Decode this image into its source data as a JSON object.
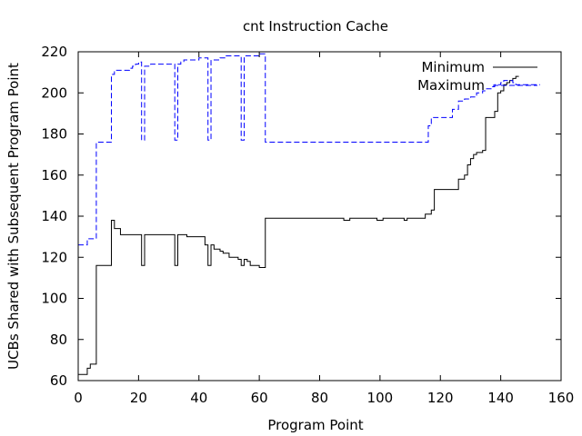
{
  "chart_data": {
    "type": "line",
    "title": "cnt Instruction Cache",
    "xlabel": "Program Point",
    "ylabel": "UCBs Shared with Subsequent Program Point",
    "xlim": [
      0,
      160
    ],
    "ylim": [
      60,
      220
    ],
    "xticks": [
      0,
      20,
      40,
      60,
      80,
      100,
      120,
      140,
      160
    ],
    "yticks": [
      60,
      80,
      100,
      120,
      140,
      160,
      180,
      200,
      220
    ],
    "grid": false,
    "legend_position": "top-right",
    "series": [
      {
        "name": "Minimum",
        "color": "#000000",
        "style": "solid",
        "x": [
          0,
          1,
          2,
          3,
          4,
          5,
          6,
          7,
          8,
          9,
          10,
          11,
          12,
          13,
          14,
          15,
          16,
          17,
          18,
          19,
          20,
          21,
          22,
          23,
          24,
          25,
          26,
          27,
          28,
          29,
          30,
          31,
          32,
          33,
          34,
          35,
          36,
          37,
          38,
          39,
          40,
          41,
          42,
          43,
          44,
          45,
          46,
          47,
          48,
          49,
          50,
          51,
          52,
          53,
          54,
          55,
          56,
          57,
          58,
          59,
          60,
          61,
          62,
          63,
          64,
          65,
          66,
          67,
          68,
          69,
          70,
          71,
          72,
          73,
          74,
          75,
          76,
          77,
          78,
          79,
          80,
          81,
          82,
          83,
          84,
          85,
          86,
          87,
          88,
          89,
          90,
          91,
          92,
          93,
          94,
          95,
          96,
          97,
          98,
          99,
          100,
          101,
          102,
          103,
          104,
          105,
          106,
          107,
          108,
          109,
          110,
          111,
          112,
          113,
          114,
          115,
          116,
          117,
          118,
          119,
          120,
          121,
          122,
          123,
          124,
          125,
          126,
          127,
          128,
          129,
          130,
          131,
          132,
          133,
          134,
          135,
          136,
          137,
          138,
          139,
          140,
          141,
          142,
          143,
          144,
          145,
          146
        ],
        "y": [
          63,
          63,
          63,
          66,
          68,
          68,
          116,
          116,
          116,
          116,
          116,
          138,
          134,
          134,
          131,
          131,
          131,
          131,
          131,
          131,
          131,
          116,
          131,
          131,
          131,
          131,
          131,
          131,
          131,
          131,
          131,
          131,
          116,
          131,
          131,
          131,
          130,
          130,
          130,
          130,
          130,
          130,
          126,
          116,
          126,
          124,
          124,
          123,
          122,
          122,
          120,
          120,
          120,
          119,
          116,
          119,
          118,
          116,
          116,
          116,
          115,
          115,
          139,
          139,
          139,
          139,
          139,
          139,
          139,
          139,
          139,
          139,
          139,
          139,
          139,
          139,
          139,
          139,
          139,
          139,
          139,
          139,
          139,
          139,
          139,
          139,
          139,
          139,
          138,
          138,
          139,
          139,
          139,
          139,
          139,
          139,
          139,
          139,
          139,
          138,
          138,
          139,
          139,
          139,
          139,
          139,
          139,
          139,
          138,
          139,
          139,
          139,
          139,
          139,
          139,
          141,
          141,
          143,
          153,
          153,
          153,
          153,
          153,
          153,
          153,
          153,
          158,
          158,
          160,
          165,
          168,
          170,
          171,
          171,
          172,
          188,
          188,
          188,
          191,
          200,
          201,
          204,
          205,
          206,
          207,
          208,
          208
        ]
      },
      {
        "name": "Maximum",
        "color": "#0000ff",
        "style": "dashed",
        "x": [
          0,
          1,
          2,
          3,
          4,
          5,
          6,
          7,
          8,
          9,
          10,
          11,
          12,
          13,
          14,
          15,
          16,
          17,
          18,
          19,
          20,
          21,
          22,
          23,
          24,
          25,
          26,
          27,
          28,
          29,
          30,
          31,
          32,
          33,
          34,
          35,
          36,
          37,
          38,
          39,
          40,
          41,
          42,
          43,
          44,
          45,
          46,
          47,
          48,
          49,
          50,
          51,
          52,
          53,
          54,
          55,
          56,
          57,
          58,
          59,
          60,
          61,
          62,
          63,
          64,
          65,
          66,
          67,
          68,
          69,
          70,
          71,
          72,
          73,
          74,
          75,
          76,
          77,
          78,
          79,
          80,
          81,
          82,
          83,
          84,
          85,
          86,
          87,
          88,
          89,
          90,
          91,
          92,
          93,
          94,
          95,
          96,
          97,
          98,
          99,
          100,
          101,
          102,
          103,
          104,
          105,
          106,
          107,
          108,
          109,
          110,
          111,
          112,
          113,
          114,
          115,
          116,
          117,
          118,
          119,
          120,
          121,
          122,
          123,
          124,
          125,
          126,
          127,
          128,
          129,
          130,
          131,
          132,
          133,
          134,
          135,
          136,
          137,
          138,
          139,
          140,
          141,
          142,
          143,
          144,
          145,
          146,
          147,
          148,
          149,
          150,
          151,
          152,
          153
        ],
        "y": [
          126,
          126,
          126,
          129,
          129,
          129,
          176,
          176,
          176,
          176,
          176,
          209,
          211,
          211,
          211,
          211,
          211,
          212,
          213,
          214,
          215,
          177,
          213,
          213,
          214,
          214,
          214,
          214,
          214,
          214,
          214,
          214,
          177,
          214,
          215,
          216,
          216,
          216,
          216,
          216,
          217,
          217,
          217,
          177,
          216,
          216,
          216,
          217,
          217,
          218,
          218,
          218,
          218,
          218,
          177,
          218,
          218,
          218,
          218,
          218,
          219,
          219,
          176,
          176,
          176,
          176,
          176,
          176,
          176,
          176,
          176,
          176,
          176,
          176,
          176,
          176,
          176,
          176,
          176,
          176,
          176,
          176,
          176,
          176,
          176,
          176,
          176,
          176,
          176,
          176,
          176,
          176,
          176,
          176,
          176,
          176,
          176,
          176,
          176,
          176,
          176,
          176,
          176,
          176,
          176,
          176,
          176,
          176,
          176,
          176,
          176,
          176,
          176,
          176,
          176,
          176,
          184,
          188,
          188,
          188,
          188,
          188,
          188,
          188,
          192,
          192,
          196,
          196,
          197,
          197,
          198,
          198,
          200,
          200,
          201,
          202,
          202,
          203,
          204,
          204,
          205,
          206,
          206,
          206,
          205,
          204,
          204,
          204,
          204,
          204,
          204,
          204,
          204,
          204
        ]
      }
    ]
  }
}
